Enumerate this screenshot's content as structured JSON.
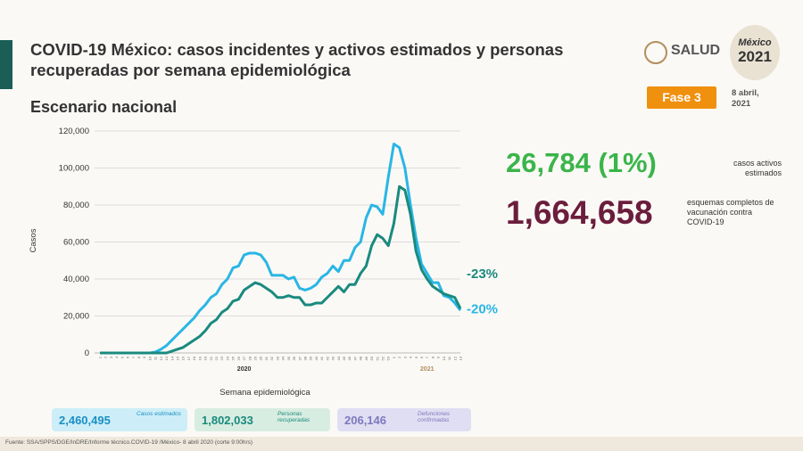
{
  "header": {
    "title": "COVID-19 México: casos incidentes y activos estimados y personas recuperadas por semana epidemiológica",
    "subtitle": "Escenario nacional",
    "logo": "SALUD",
    "badge": [
      "México",
      "2021"
    ],
    "phase": "Fase 3",
    "date": "8 abril, 2021"
  },
  "stats": [
    {
      "value": "26,784 (1%)",
      "label": "casos activos estimados"
    },
    {
      "value": "1,664,658",
      "label": "esquemas completos de vacunación contra COVID-19"
    }
  ],
  "summary": [
    {
      "value": "2,460,495",
      "label": "Casos estimados"
    },
    {
      "value": "1,802,033",
      "label": "Personas recuperadas"
    },
    {
      "value": "206,146",
      "label": "Defunciones confirmadas"
    }
  ],
  "footer": "Fuente: SSA/SPPS/DGE/InDRE/Informe técnico.COVID-19 /México- 8 abril 2020 (corte 9:00hrs)",
  "chart_data": {
    "type": "line",
    "y_label": "Casos",
    "x_label": "Semana epidemiológica",
    "x_groups": [
      "2020",
      "2021"
    ],
    "categories": [
      "1",
      "2",
      "3",
      "4",
      "5",
      "6",
      "7",
      "8",
      "9",
      "10",
      "11",
      "12",
      "13",
      "14",
      "15",
      "16",
      "17",
      "18",
      "19",
      "20",
      "21",
      "22",
      "23",
      "24",
      "25",
      "26",
      "27",
      "28",
      "29",
      "30",
      "31",
      "32",
      "33",
      "34",
      "35",
      "36",
      "37",
      "38",
      "39",
      "40",
      "41",
      "42",
      "43",
      "44",
      "45",
      "46",
      "47",
      "48",
      "49",
      "50",
      "51",
      "52",
      "53",
      "1",
      "2",
      "3",
      "4",
      "5",
      "6",
      "7",
      "8",
      "9",
      "10",
      "11",
      "12",
      "13"
    ],
    "series": [
      {
        "color": "#29b6e5",
        "end_label": "-20%",
        "values": [
          0,
          0,
          0,
          0,
          0,
          0,
          0,
          0,
          0,
          0,
          500,
          2000,
          4000,
          7000,
          10000,
          13000,
          16000,
          19000,
          23000,
          26000,
          30000,
          32000,
          37000,
          40000,
          46000,
          47000,
          53000,
          54000,
          54000,
          53000,
          49000,
          42000,
          42000,
          42000,
          40000,
          41000,
          35000,
          34000,
          35000,
          37000,
          41000,
          43000,
          47000,
          44000,
          50000,
          50000,
          57000,
          60000,
          73000,
          80000,
          79000,
          75000,
          95000,
          113000,
          111000,
          100000,
          80000,
          62000,
          48000,
          43000,
          38000,
          38000,
          31000,
          30000,
          27000,
          23000
        ]
      },
      {
        "color": "#1a8a7e",
        "end_label": "-23%",
        "values": [
          0,
          0,
          0,
          0,
          0,
          0,
          0,
          0,
          0,
          0,
          0,
          0,
          0,
          1000,
          2000,
          3000,
          5000,
          7000,
          9000,
          12000,
          16000,
          18000,
          22000,
          24000,
          28000,
          29000,
          34000,
          36000,
          38000,
          37000,
          35000,
          33000,
          30000,
          30000,
          31000,
          30000,
          30000,
          26000,
          26000,
          27000,
          27000,
          30000,
          33000,
          36000,
          33000,
          37000,
          37000,
          43000,
          47000,
          58000,
          64000,
          62000,
          58000,
          70000,
          90000,
          88000,
          75000,
          55000,
          45000,
          40000,
          36000,
          34000,
          32000,
          31000,
          30000,
          24000
        ]
      }
    ],
    "ylim": [
      0,
      120000
    ],
    "yticks": [
      0,
      {
        "value": 20000,
        "label": "20,000"
      },
      {
        "value": 40000,
        "label": "40,000"
      },
      {
        "value": 60000,
        "label": "60,000"
      },
      {
        "value": 80000,
        "label": "80,000"
      },
      {
        "value": 100000,
        "label": "100,000"
      },
      {
        "value": 120000,
        "label": "120,000"
      }
    ],
    "grid": true
  }
}
